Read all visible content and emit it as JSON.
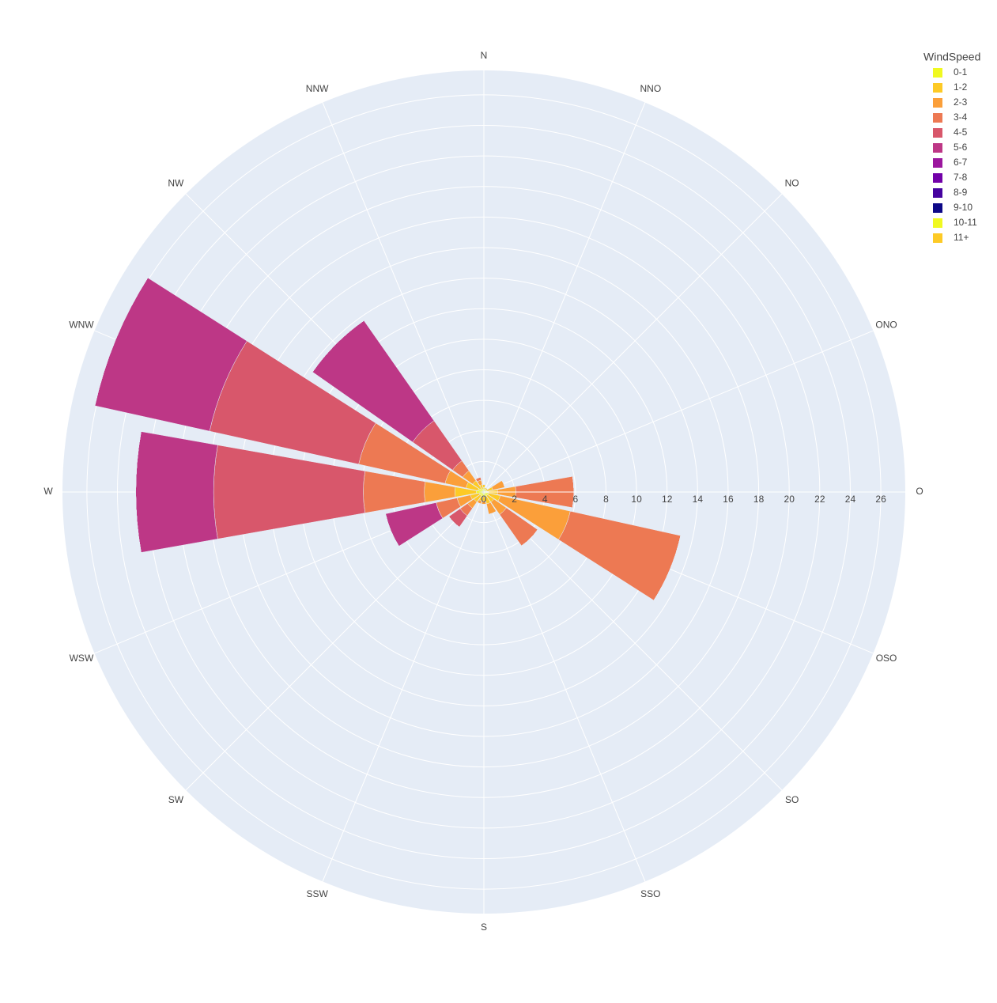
{
  "chart_data": {
    "type": "barpolar",
    "directions": [
      "N",
      "NNO",
      "NO",
      "ONO",
      "O",
      "OSO",
      "SO",
      "SSO",
      "S",
      "SSW",
      "SW",
      "WSW",
      "W",
      "WNW",
      "NW",
      "NNW"
    ],
    "legend_title": "WindSpeed",
    "rlim": [
      0,
      27.6
    ],
    "rticks": [
      0,
      2,
      4,
      6,
      8,
      10,
      12,
      14,
      16,
      18,
      20,
      22,
      24,
      26
    ],
    "grid": true,
    "series": [
      {
        "name": "0-1",
        "color": "#f0f921",
        "values": [
          0.3,
          0.2,
          0.2,
          0.2,
          0.3,
          0.3,
          0.3,
          0.3,
          0.3,
          0.3,
          0.3,
          0.3,
          0.5,
          0.4,
          0.3,
          0.2
        ]
      },
      {
        "name": "1-2",
        "color": "#fdca26",
        "values": [
          0.2,
          0.1,
          0.1,
          0.4,
          0.6,
          0.8,
          0.5,
          0.5,
          0.3,
          0.3,
          0.5,
          0.6,
          1.4,
          0.8,
          0.6,
          0.3
        ]
      },
      {
        "name": "2-3",
        "color": "#fb9f3a",
        "values": [
          0,
          0,
          0,
          0.8,
          1.2,
          4.7,
          1.0,
          0.7,
          0.2,
          0.2,
          0.5,
          0.9,
          2.0,
          1.4,
          0.8,
          0.3
        ]
      },
      {
        "name": "3-4",
        "color": "#ed7953",
        "values": [
          0,
          0,
          0,
          0,
          3.8,
          7.4,
          2.5,
          0,
          0,
          0,
          0.6,
          1.4,
          4.0,
          5.8,
          0.8,
          0.2
        ]
      },
      {
        "name": "4-5",
        "color": "#d8576b",
        "values": [
          0,
          0,
          0,
          0,
          0,
          0,
          0,
          0,
          0,
          0,
          0.9,
          0,
          9.8,
          10,
          3.2,
          0
        ]
      },
      {
        "name": "5-6",
        "color": "#bd3786",
        "values": [
          0,
          0,
          0,
          0,
          0,
          0,
          0,
          0,
          0,
          0,
          0,
          3.4,
          5.1,
          7.7,
          8.0,
          0
        ]
      },
      {
        "name": "6-7",
        "color": "#9c179e",
        "values": [
          0,
          0,
          0,
          0,
          0,
          0,
          0,
          0,
          0,
          0,
          0,
          0,
          0,
          0,
          0,
          0
        ]
      },
      {
        "name": "7-8",
        "color": "#7201a8",
        "values": [
          0,
          0,
          0,
          0,
          0,
          0,
          0,
          0,
          0,
          0,
          0,
          0,
          0,
          0,
          0,
          0
        ]
      },
      {
        "name": "8-9",
        "color": "#46039f",
        "values": [
          0,
          0,
          0,
          0,
          0,
          0,
          0,
          0,
          0,
          0,
          0,
          0,
          0,
          0,
          0,
          0
        ]
      },
      {
        "name": "9-10",
        "color": "#0d0887",
        "values": [
          0,
          0,
          0,
          0,
          0,
          0,
          0,
          0,
          0,
          0,
          0,
          0,
          0,
          0,
          0,
          0
        ]
      },
      {
        "name": "10-11",
        "color": "#f0f921",
        "values": [
          0,
          0,
          0,
          0,
          0,
          0,
          0,
          0,
          0,
          0,
          0,
          0,
          0,
          0,
          0,
          0
        ]
      },
      {
        "name": "11+",
        "color": "#fdca26",
        "values": [
          0,
          0,
          0,
          0,
          0,
          0,
          0,
          0,
          0,
          0,
          0,
          0,
          0,
          0,
          0,
          0
        ]
      }
    ]
  }
}
